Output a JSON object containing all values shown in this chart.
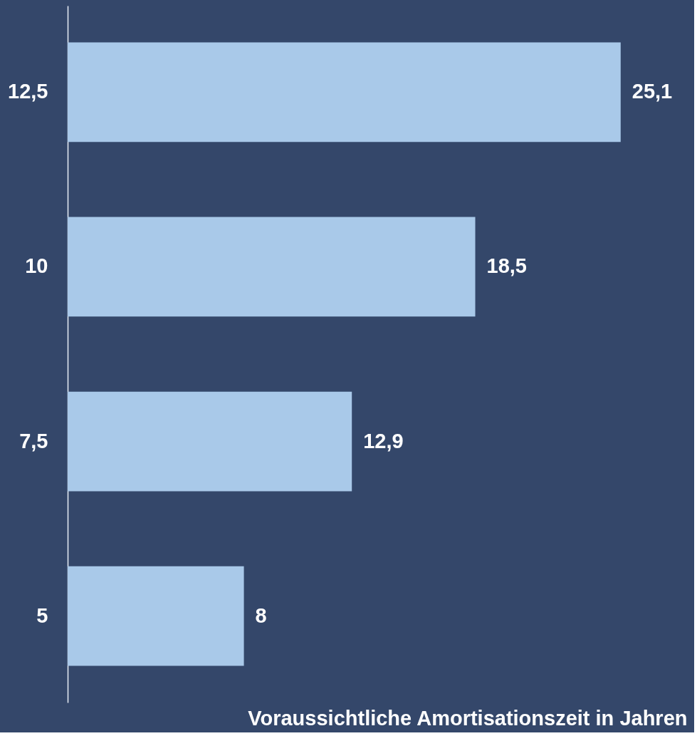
{
  "chart_data": {
    "type": "bar",
    "orientation": "horizontal",
    "xlabel": "Voraussichtliche Amortisationszeit in Jahren",
    "categories": [
      "12,5",
      "10",
      "7,5",
      "5"
    ],
    "values": [
      25.1,
      18.5,
      12.9,
      8
    ],
    "value_labels": [
      "25,1",
      "18,5",
      "12,9",
      "8"
    ],
    "color": "#a9c9e9",
    "tick_labels": "y",
    "grid": false
  }
}
